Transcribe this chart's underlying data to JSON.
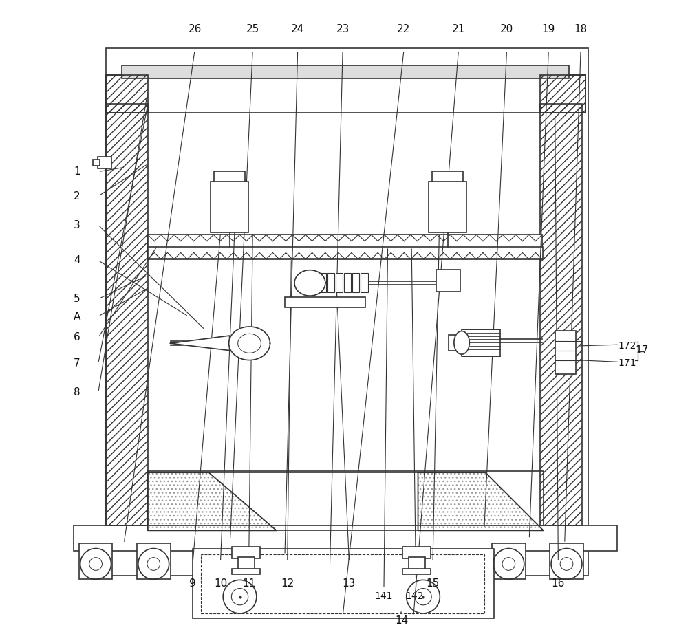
{
  "bg_color": "#ffffff",
  "line_color": "#333333",
  "left_labels": {
    "8": [
      0.085,
      0.39,
      0.195,
      0.858
    ],
    "7": [
      0.085,
      0.435,
      0.195,
      0.838
    ],
    "6": [
      0.085,
      0.475,
      0.21,
      0.618
    ],
    "5": [
      0.085,
      0.535,
      0.195,
      0.572
    ],
    "A": [
      0.085,
      0.508,
      0.195,
      0.552
    ],
    "4": [
      0.085,
      0.595,
      0.258,
      0.508
    ],
    "3": [
      0.085,
      0.65,
      0.285,
      0.486
    ],
    "2": [
      0.085,
      0.695,
      0.195,
      0.745
    ],
    "1": [
      0.085,
      0.733,
      0.16,
      0.74
    ]
  },
  "top_labels": {
    "9": [
      0.265,
      0.093,
      0.308,
      0.638
    ],
    "10": [
      0.308,
      0.093,
      0.333,
      0.713
    ],
    "11": [
      0.352,
      0.093,
      0.358,
      0.638
    ],
    "12": [
      0.412,
      0.093,
      0.418,
      0.598
    ],
    "13": [
      0.508,
      0.093,
      0.488,
      0.563
    ],
    "15": [
      0.638,
      0.093,
      0.648,
      0.638
    ],
    "16": [
      0.833,
      0.093,
      0.828,
      0.823
    ]
  },
  "bottom_labels": {
    "18": [
      0.868,
      0.955,
      0.843,
      0.155
    ],
    "19": [
      0.818,
      0.955,
      0.788,
      0.162
    ],
    "20": [
      0.753,
      0.955,
      0.718,
      0.178
    ],
    "21": [
      0.678,
      0.955,
      0.608,
      0.042
    ],
    "22": [
      0.593,
      0.955,
      0.498,
      0.042
    ],
    "23": [
      0.498,
      0.955,
      0.478,
      0.12
    ],
    "24": [
      0.428,
      0.955,
      0.408,
      0.137
    ],
    "25": [
      0.358,
      0.955,
      0.323,
      0.16
    ],
    "26": [
      0.268,
      0.955,
      0.158,
      0.155
    ]
  }
}
